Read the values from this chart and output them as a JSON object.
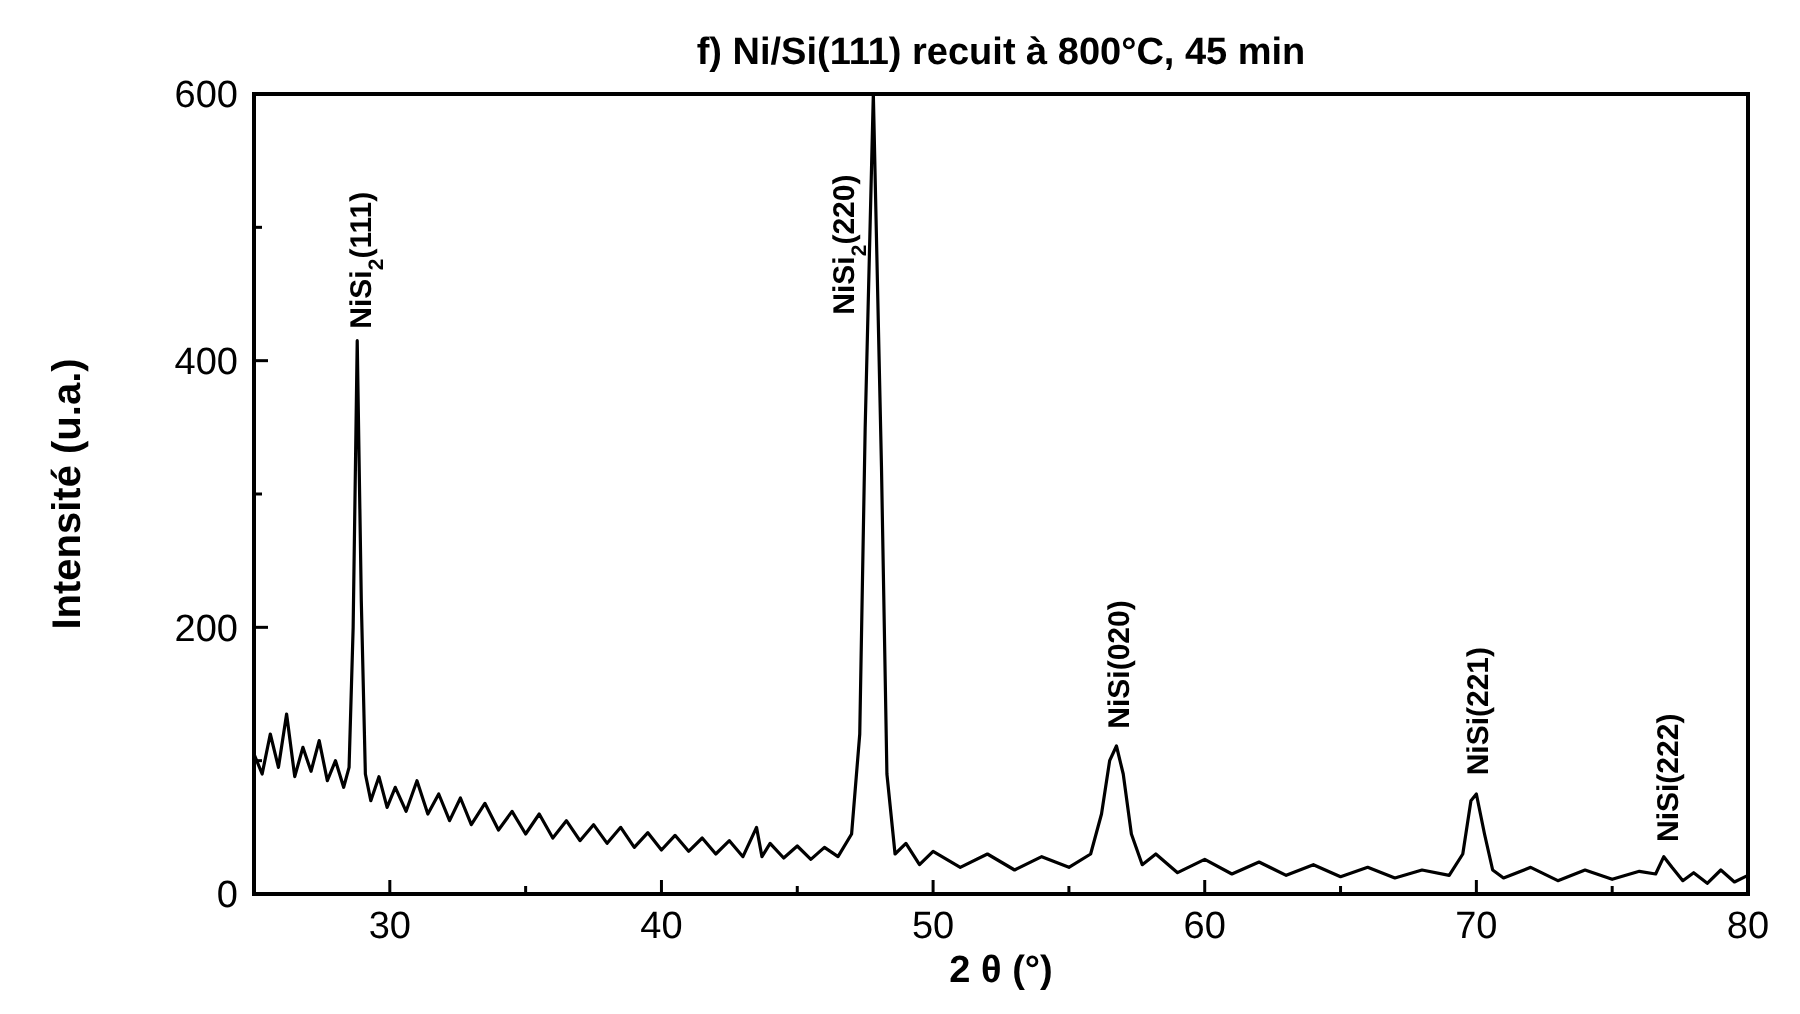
{
  "chart_data": {
    "type": "line",
    "title": "f) Ni/Si(111) recuit à 800°C, 45 min",
    "xlabel": "2 θ (°)",
    "ylabel": "Intensité (u.a.)",
    "xlim": [
      25,
      80
    ],
    "xticks": [
      30,
      {
        "value": 35,
        "label": null
      },
      40,
      {
        "value": 45,
        "label": null
      },
      50,
      {
        "value": 55,
        "label": null
      },
      60,
      {
        "value": 65,
        "label": null
      },
      70,
      {
        "value": 75,
        "label": null
      },
      80
    ],
    "ylim": [
      0,
      600
    ],
    "yticks": [
      0,
      {
        "value": 100,
        "label": null
      },
      200,
      {
        "value": 300,
        "label": null
      },
      400,
      {
        "value": 500,
        "label": null
      },
      600
    ],
    "grid": false,
    "marker": "none",
    "line_style": "solid",
    "series": [
      {
        "color": "#000000",
        "x": [
          25,
          25.3,
          25.6,
          25.9,
          26.2,
          26.5,
          26.8,
          27.1,
          27.4,
          27.7,
          28,
          28.3,
          28.5,
          28.65,
          28.8,
          28.95,
          29.1,
          29.3,
          29.6,
          29.9,
          30.2,
          30.6,
          31,
          31.4,
          31.8,
          32.2,
          32.6,
          33,
          33.5,
          34,
          34.5,
          35,
          35.5,
          36,
          36.5,
          37,
          37.5,
          38,
          38.5,
          39,
          39.5,
          40,
          40.5,
          41,
          41.5,
          42,
          42.5,
          43,
          43.5,
          43.7,
          44,
          44.5,
          45,
          45.5,
          46,
          46.5,
          47,
          47.3,
          47.5,
          47.8,
          48.1,
          48.3,
          48.6,
          49,
          49.5,
          50,
          51,
          52,
          53,
          54,
          55,
          55.8,
          56.2,
          56.5,
          56.75,
          57,
          57.3,
          57.7,
          58.2,
          59,
          60,
          61,
          62,
          63,
          64,
          65,
          66,
          67,
          68,
          69,
          69.5,
          69.8,
          70,
          70.3,
          70.6,
          71,
          72,
          73,
          74,
          75,
          76,
          76.6,
          76.9,
          77.2,
          77.6,
          78,
          78.5,
          79,
          79.5,
          80
        ],
        "values": [
          105,
          90,
          120,
          95,
          135,
          88,
          110,
          92,
          115,
          85,
          100,
          80,
          95,
          200,
          415,
          220,
          90,
          70,
          88,
          65,
          80,
          62,
          85,
          60,
          75,
          55,
          72,
          52,
          68,
          48,
          62,
          45,
          60,
          42,
          55,
          40,
          52,
          38,
          50,
          35,
          46,
          33,
          44,
          32,
          42,
          30,
          40,
          28,
          50,
          28,
          38,
          27,
          36,
          26,
          35,
          28,
          45,
          120,
          350,
          600,
          320,
          90,
          30,
          38,
          22,
          32,
          20,
          30,
          18,
          28,
          20,
          30,
          60,
          100,
          111,
          90,
          45,
          22,
          30,
          16,
          26,
          15,
          24,
          14,
          22,
          13,
          20,
          12,
          18,
          14,
          30,
          70,
          75,
          45,
          18,
          12,
          20,
          10,
          18,
          11,
          17,
          15,
          28,
          20,
          10,
          16,
          8,
          18,
          9,
          14
        ]
      }
    ],
    "annotations": [
      {
        "text": "NiSi$_{2}$(111)",
        "x": 28.8,
        "y": 415
      },
      {
        "text": "NiSi$_{2}$(220)",
        "x": 47.6,
        "y": 430
      },
      {
        "text": "NiSi(020)",
        "x": 56.7,
        "y": 115
      },
      {
        "text": "NiSi(221)",
        "x": 69.9,
        "y": 80
      },
      {
        "text": "NiSi(222)",
        "x": 76.9,
        "y": 30
      }
    ]
  }
}
